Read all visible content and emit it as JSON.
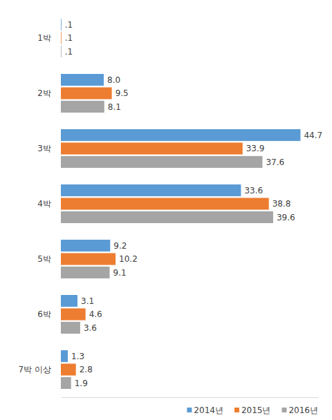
{
  "chart_data": {
    "type": "bar",
    "orientation": "horizontal",
    "categories": [
      "1박",
      "2박",
      "3박",
      "4박",
      "5박",
      "6박",
      "7박 이상"
    ],
    "series": [
      {
        "name": "2014년",
        "color": "#5B9BD5",
        "values": [
          0.1,
          8.0,
          44.7,
          33.6,
          9.2,
          3.1,
          1.3
        ],
        "value_labels": [
          ".1",
          "8.0",
          "44.7",
          "33.6",
          "9.2",
          "3.1",
          "1.3"
        ]
      },
      {
        "name": "2015년",
        "color": "#ED7D31",
        "values": [
          0.1,
          9.5,
          33.9,
          38.8,
          10.2,
          4.6,
          2.8
        ],
        "value_labels": [
          ".1",
          "9.5",
          "33.9",
          "38.8",
          "10.2",
          "4.6",
          "2.8"
        ]
      },
      {
        "name": "2016년",
        "color": "#A5A5A5",
        "values": [
          0.1,
          8.1,
          37.6,
          39.6,
          9.1,
          3.6,
          1.9
        ],
        "value_labels": [
          ".1",
          "8.1",
          "37.6",
          "39.6",
          "9.1",
          "3.6",
          "1.9"
        ]
      }
    ],
    "xlim": [
      0,
      48
    ],
    "data_labels": true,
    "tick_labels": "y",
    "grid": false,
    "legend": "bottom-right"
  }
}
